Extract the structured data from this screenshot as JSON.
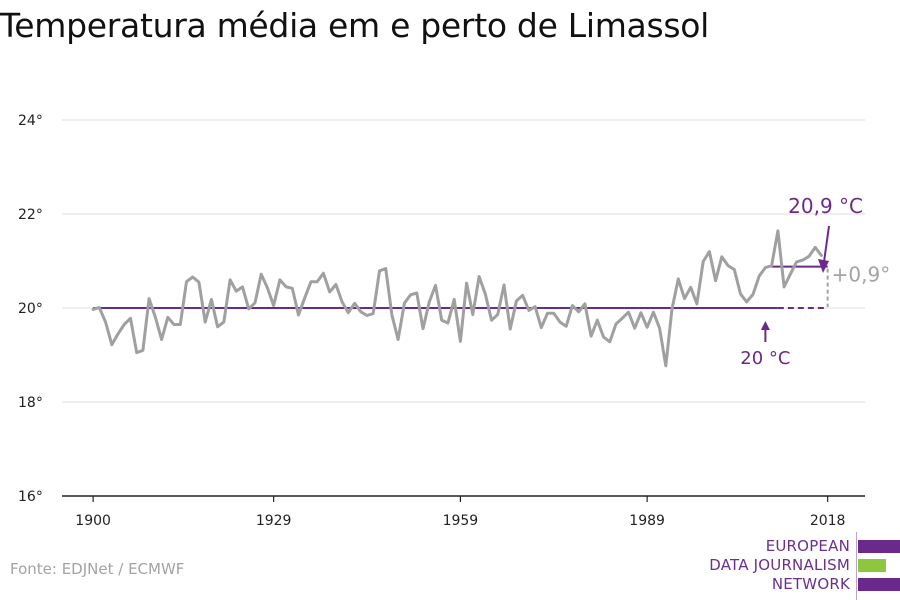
{
  "chart_data": {
    "type": "line",
    "title": "Temperatura média em e perto de Limassol",
    "xlabel": "",
    "ylabel": "",
    "x_ticks": [
      "1900",
      "1929",
      "1959",
      "1989",
      "2018"
    ],
    "y_ticks": [
      "16°",
      "18°",
      "20°",
      "22°",
      "24°"
    ],
    "xlim": [
      1895,
      2024
    ],
    "ylim": [
      16,
      24
    ],
    "grid": true,
    "series": [
      {
        "x_start": 1900,
        "values": [
          19.97,
          20.01,
          19.7,
          19.22,
          19.45,
          19.65,
          19.78,
          19.05,
          19.1,
          20.2,
          19.8,
          19.33,
          19.8,
          19.65,
          19.65,
          20.56,
          20.66,
          20.55,
          19.7,
          20.18,
          19.6,
          19.7,
          20.6,
          20.36,
          20.45,
          19.98,
          20.11,
          20.72,
          20.43,
          20.05,
          20.6,
          20.45,
          20.42,
          19.85,
          20.22,
          20.56,
          20.56,
          20.74,
          20.34,
          20.5,
          20.13,
          19.9,
          20.1,
          19.92,
          19.84,
          19.88,
          20.79,
          20.84,
          19.85,
          19.33,
          20.1,
          20.28,
          20.32,
          19.56,
          20.13,
          20.48,
          19.74,
          19.68,
          20.18,
          19.29,
          20.53,
          19.86,
          20.67,
          20.3,
          19.74,
          19.86,
          20.49,
          19.55,
          20.15,
          20.27,
          19.95,
          20.03,
          19.58,
          19.89,
          19.89,
          19.7,
          19.61,
          20.05,
          19.92,
          20.09,
          19.4,
          19.74,
          19.38,
          19.28,
          19.66,
          19.78,
          19.91,
          19.57,
          19.9,
          19.59,
          19.91,
          19.57,
          18.77,
          19.98,
          20.62,
          20.2,
          20.44,
          20.09,
          20.99,
          21.2,
          20.58,
          21.09,
          20.9,
          20.82,
          20.3,
          20.13,
          20.29,
          20.68,
          20.86,
          20.9,
          21.64,
          20.45,
          20.72,
          20.98,
          21.02,
          21.1,
          21.29,
          21.12
        ],
        "color": "#a0a0a0"
      }
    ],
    "reference_lines": [
      {
        "label": "20 °C",
        "value": 20.0,
        "from": 1900,
        "to": 2018,
        "solid_to": 2010,
        "color": "#6a2a8c"
      },
      {
        "label": "20,9 °C",
        "value": 20.88,
        "from": 2009,
        "to": 2018,
        "color": "#6a2a8c"
      }
    ],
    "difference_label": "+0,9°",
    "colors": {
      "accent": "#6a2a8c",
      "line": "#a0a0a0",
      "grid": "#dddddd",
      "axis": "#222222",
      "diff": "#a3a3a3"
    }
  },
  "source": "Fonte: EDJNet / ECMWF",
  "logo": {
    "lines": [
      "EUROPEAN",
      "DATA JOURNALISM",
      "NETWORK"
    ],
    "colors": [
      "#6a2a8c",
      "#8dc63f",
      "#6a2a8c"
    ]
  }
}
